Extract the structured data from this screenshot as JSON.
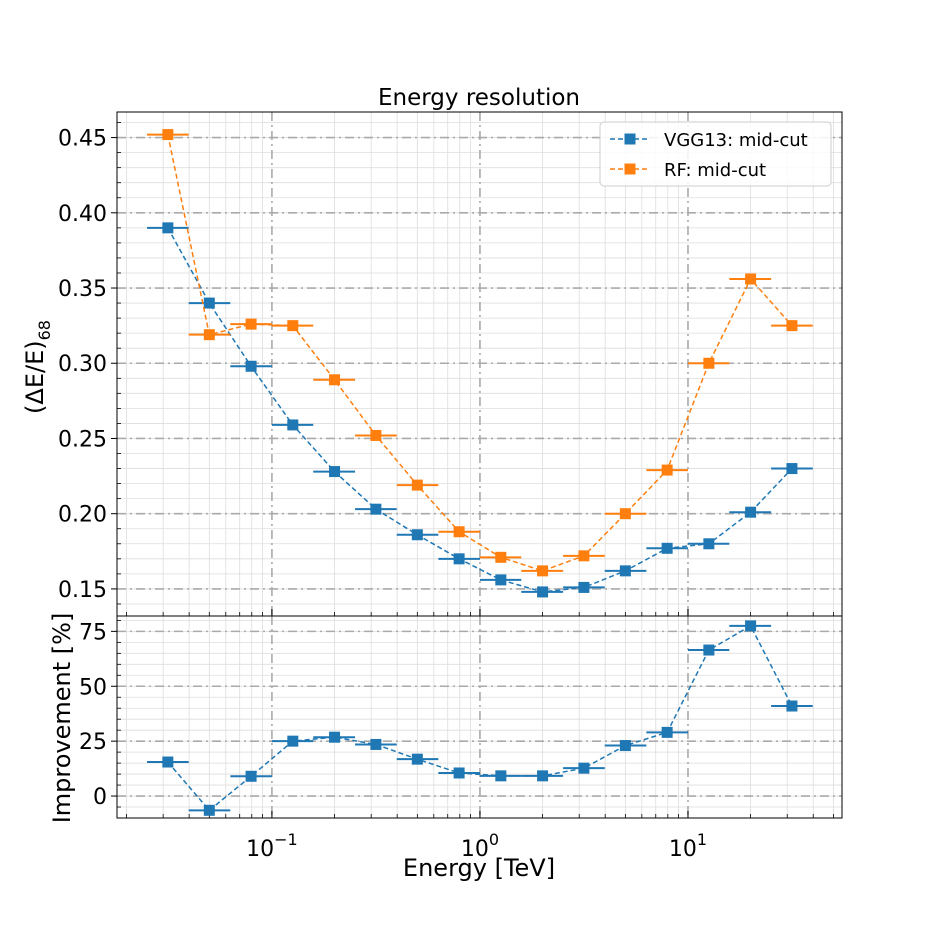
{
  "chart_data": [
    {
      "type": "line",
      "title": "Energy resolution",
      "xlabel": "",
      "ylabel": "(ΔE/E)",
      "ylabel_subscript": "68",
      "x_scale": "log",
      "xlim": [
        0.018,
        55
      ],
      "ylim": [
        0.132,
        0.467
      ],
      "yticks": [
        0.15,
        0.2,
        0.25,
        0.3,
        0.35,
        0.4,
        0.45
      ],
      "ytick_labels": [
        "0.15",
        "0.20",
        "0.25",
        "0.30",
        "0.35",
        "0.40",
        "0.45"
      ],
      "grid": "on",
      "legend_position": "top-right",
      "series": [
        {
          "name": "VGG13: mid-cut",
          "color": "#1f77b4",
          "x": [
            0.0316,
            0.05,
            0.0794,
            0.126,
            0.2,
            0.316,
            0.5,
            0.794,
            1.26,
            2.0,
            3.16,
            5.0,
            7.94,
            12.6,
            20.0,
            31.6
          ],
          "values": [
            0.39,
            0.34,
            0.298,
            0.259,
            0.228,
            0.203,
            0.186,
            0.17,
            0.156,
            0.148,
            0.151,
            0.162,
            0.177,
            0.18,
            0.201,
            0.23
          ],
          "x_err_low": [
            0.0251,
            0.0398,
            0.0631,
            0.1,
            0.158,
            0.251,
            0.398,
            0.631,
            1.0,
            1.58,
            2.51,
            3.98,
            6.31,
            10.0,
            15.8,
            25.1
          ],
          "x_err_high": [
            0.0398,
            0.0631,
            0.1,
            0.158,
            0.251,
            0.398,
            0.631,
            1.0,
            1.58,
            2.51,
            3.98,
            6.31,
            10.0,
            15.8,
            25.1,
            39.8
          ]
        },
        {
          "name": "RF: mid-cut",
          "color": "#ff7f0e",
          "x": [
            0.0316,
            0.05,
            0.0794,
            0.126,
            0.2,
            0.316,
            0.5,
            0.794,
            1.26,
            2.0,
            3.16,
            5.0,
            7.94,
            12.6,
            20.0,
            31.6
          ],
          "values": [
            0.452,
            0.319,
            0.326,
            0.325,
            0.289,
            0.252,
            0.219,
            0.188,
            0.171,
            0.162,
            0.172,
            0.2,
            0.229,
            0.3,
            0.356,
            0.325
          ],
          "x_err_low": [
            0.0251,
            0.0398,
            0.0631,
            0.1,
            0.158,
            0.251,
            0.398,
            0.631,
            1.0,
            1.58,
            2.51,
            3.98,
            6.31,
            10.0,
            15.8,
            25.1
          ],
          "x_err_high": [
            0.0398,
            0.0631,
            0.1,
            0.158,
            0.251,
            0.398,
            0.631,
            1.0,
            1.58,
            2.51,
            3.98,
            6.31,
            10.0,
            15.8,
            25.1,
            39.8
          ]
        }
      ]
    },
    {
      "type": "line",
      "title": "",
      "xlabel": "Energy [TeV]",
      "ylabel": "Improvement [%]",
      "x_scale": "log",
      "xlim": [
        0.018,
        55
      ],
      "ylim": [
        -10,
        82
      ],
      "xticks": [
        0.1,
        1,
        10
      ],
      "xtick_labels": [
        {
          "base": "10",
          "exp": "−1"
        },
        {
          "base": "10",
          "exp": "0"
        },
        {
          "base": "10",
          "exp": "1"
        }
      ],
      "yticks": [
        0,
        25,
        50,
        75
      ],
      "ytick_labels": [
        "0",
        "25",
        "50",
        "75"
      ],
      "grid": "on",
      "series": [
        {
          "color": "#1f77b4",
          "x": [
            0.0316,
            0.05,
            0.0794,
            0.126,
            0.2,
            0.316,
            0.5,
            0.794,
            1.26,
            2.0,
            3.16,
            5.0,
            7.94,
            12.6,
            20.0,
            31.6
          ],
          "values": [
            15.5,
            -6.5,
            9.0,
            25.0,
            26.8,
            23.5,
            16.8,
            10.5,
            9.2,
            9.2,
            12.7,
            23.0,
            29.0,
            66.5,
            77.5,
            41.0
          ],
          "x_err_low": [
            0.0251,
            0.0398,
            0.0631,
            0.1,
            0.158,
            0.251,
            0.398,
            0.631,
            1.0,
            1.58,
            2.51,
            3.98,
            6.31,
            10.0,
            15.8,
            25.1
          ],
          "x_err_high": [
            0.0398,
            0.0631,
            0.1,
            0.158,
            0.251,
            0.398,
            0.631,
            1.0,
            1.58,
            2.51,
            3.98,
            6.31,
            10.0,
            15.8,
            25.1,
            39.8
          ]
        }
      ]
    }
  ]
}
